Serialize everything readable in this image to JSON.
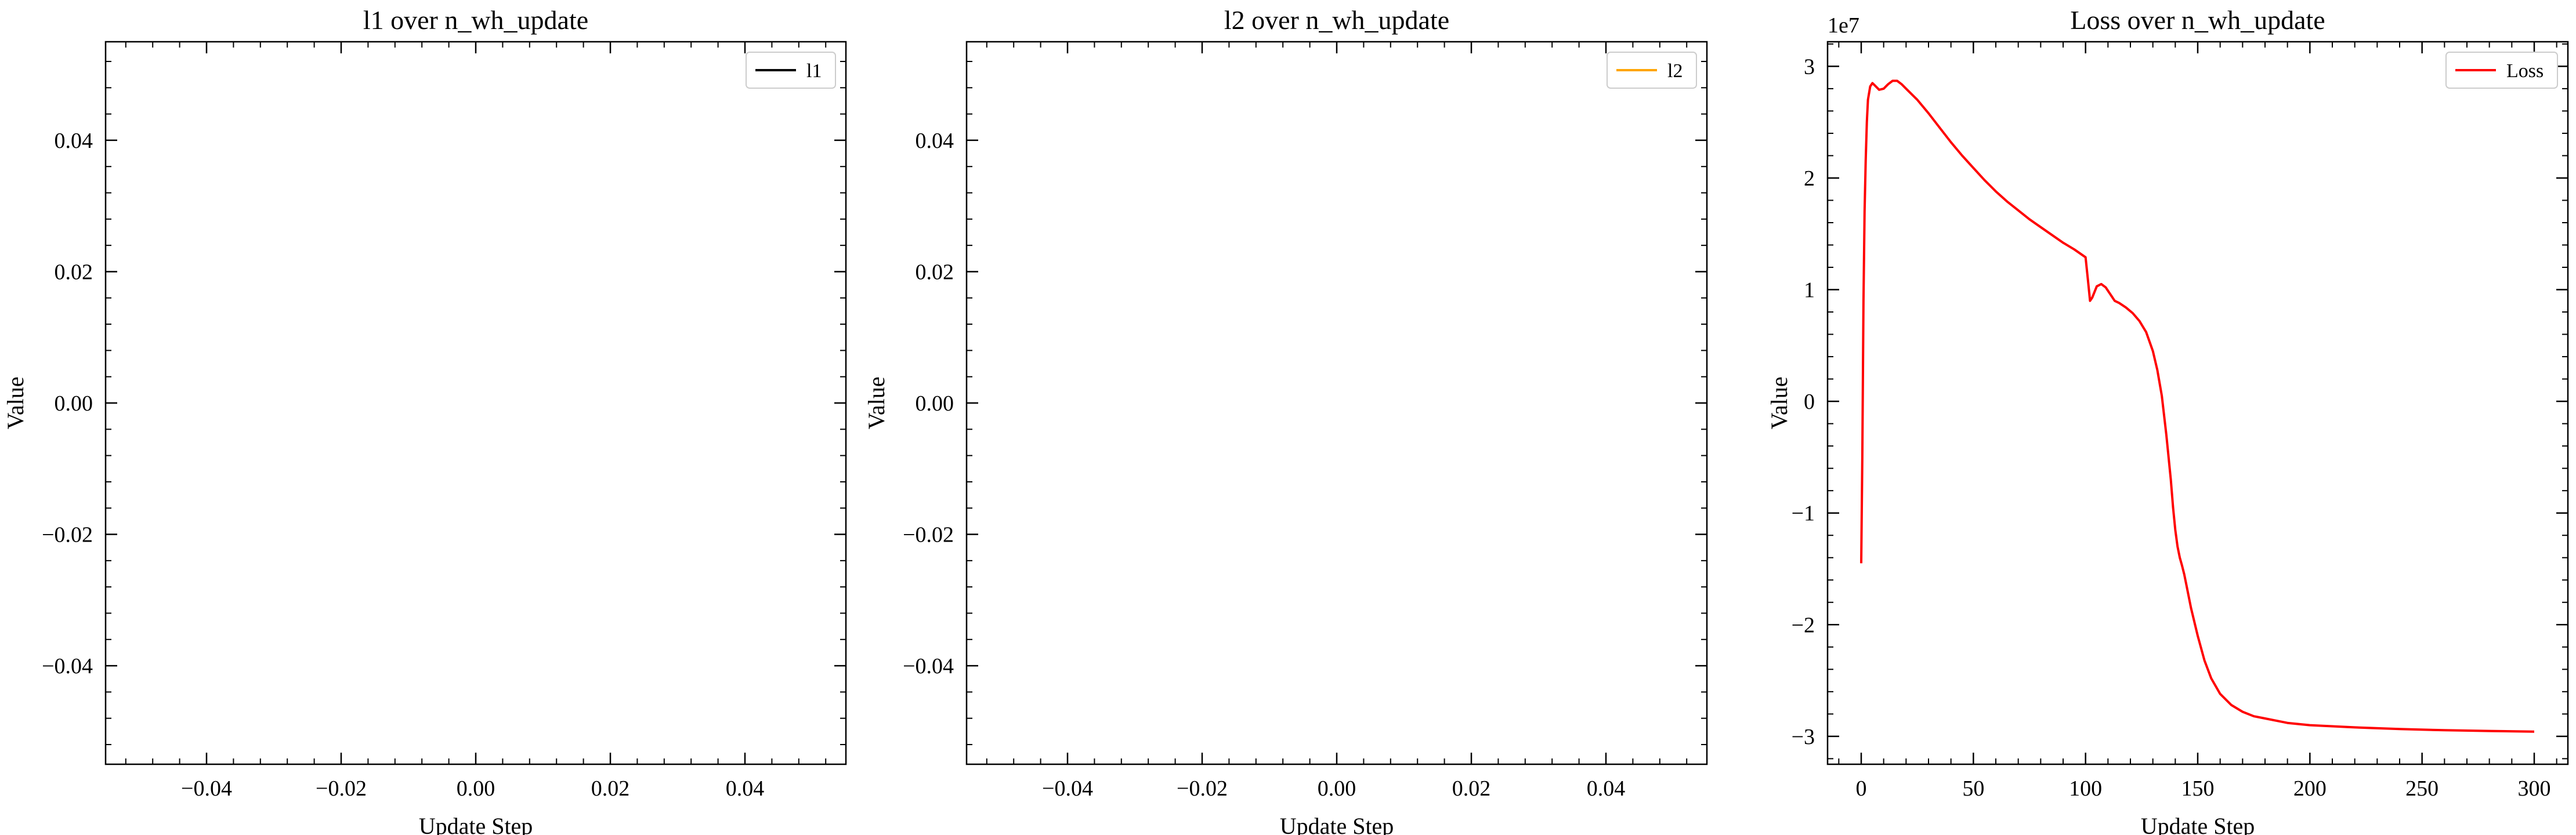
{
  "chart_data": [
    {
      "type": "line",
      "title": "l1 over n_wh_update",
      "xlabel": "Update Step",
      "ylabel": "Value",
      "xlim": [
        -0.055,
        0.055
      ],
      "ylim": [
        -0.055,
        0.055
      ],
      "xticks": [
        -0.04,
        -0.02,
        0.0,
        0.02,
        0.04
      ],
      "xticklabels": [
        "−0.04",
        "−0.02",
        "0.00",
        "0.02",
        "0.04"
      ],
      "yticks": [
        -0.04,
        -0.02,
        0.0,
        0.02,
        0.04
      ],
      "yticklabels": [
        "−0.04",
        "−0.02",
        "0.00",
        "0.02",
        "0.04"
      ],
      "offset_text": "",
      "legend_position": "top-right",
      "grid": false,
      "series": [
        {
          "name": "l1",
          "color": "#000000",
          "x": [],
          "y": []
        }
      ]
    },
    {
      "type": "line",
      "title": "l2 over n_wh_update",
      "xlabel": "Update Step",
      "ylabel": "Value",
      "xlim": [
        -0.055,
        0.055
      ],
      "ylim": [
        -0.055,
        0.055
      ],
      "xticks": [
        -0.04,
        -0.02,
        0.0,
        0.02,
        0.04
      ],
      "xticklabels": [
        "−0.04",
        "−0.02",
        "0.00",
        "0.02",
        "0.04"
      ],
      "yticks": [
        -0.04,
        -0.02,
        0.0,
        0.02,
        0.04
      ],
      "yticklabels": [
        "−0.04",
        "−0.02",
        "0.00",
        "0.02",
        "0.04"
      ],
      "offset_text": "",
      "legend_position": "top-right",
      "grid": false,
      "series": [
        {
          "name": "l2",
          "color": "#ffa500",
          "x": [],
          "y": []
        }
      ]
    },
    {
      "type": "line",
      "title": "Loss over n_wh_update",
      "xlabel": "Update Step",
      "ylabel": "Value",
      "xlim": [
        -15,
        315
      ],
      "ylim": [
        -3.25,
        3.22
      ],
      "xticks": [
        0,
        50,
        100,
        150,
        200,
        250,
        300
      ],
      "xticklabels": [
        "0",
        "50",
        "100",
        "150",
        "200",
        "250",
        "300"
      ],
      "yticks": [
        -3,
        -2,
        -1,
        0,
        1,
        2,
        3
      ],
      "yticklabels": [
        "−3",
        "−2",
        "−1",
        "0",
        "1",
        "2",
        "3"
      ],
      "offset_text": "1e7",
      "legend_position": "top-right",
      "grid": false,
      "series": [
        {
          "name": "Loss",
          "color": "#ff0000",
          "x": [
            0,
            0.5,
            1,
            1.5,
            2,
            2.5,
            3,
            4,
            5,
            6,
            8,
            10,
            12,
            14,
            16,
            18,
            20,
            25,
            30,
            35,
            40,
            45,
            50,
            55,
            60,
            65,
            70,
            75,
            80,
            85,
            90,
            95,
            100,
            101,
            102,
            103,
            105,
            107,
            109,
            111,
            113,
            115,
            118,
            121,
            124,
            127,
            130,
            132,
            134,
            136,
            138,
            139,
            140,
            141,
            142,
            143,
            144,
            145,
            147,
            150,
            153,
            156,
            160,
            165,
            170,
            175,
            180,
            190,
            200,
            220,
            240,
            260,
            280,
            300
          ],
          "y": [
            -1.45,
            -0.5,
            0.9,
            1.7,
            2.15,
            2.5,
            2.7,
            2.82,
            2.85,
            2.83,
            2.79,
            2.8,
            2.84,
            2.87,
            2.87,
            2.84,
            2.8,
            2.7,
            2.58,
            2.45,
            2.32,
            2.2,
            2.09,
            1.98,
            1.88,
            1.79,
            1.71,
            1.63,
            1.56,
            1.49,
            1.42,
            1.36,
            1.29,
            1.1,
            0.9,
            0.93,
            1.03,
            1.05,
            1.02,
            0.96,
            0.9,
            0.88,
            0.84,
            0.79,
            0.72,
            0.62,
            0.45,
            0.28,
            0.05,
            -0.3,
            -0.7,
            -0.95,
            -1.15,
            -1.3,
            -1.4,
            -1.47,
            -1.55,
            -1.65,
            -1.85,
            -2.1,
            -2.32,
            -2.48,
            -2.62,
            -2.72,
            -2.78,
            -2.82,
            -2.84,
            -2.88,
            -2.9,
            -2.92,
            -2.935,
            -2.945,
            -2.952,
            -2.958
          ]
        }
      ]
    }
  ]
}
